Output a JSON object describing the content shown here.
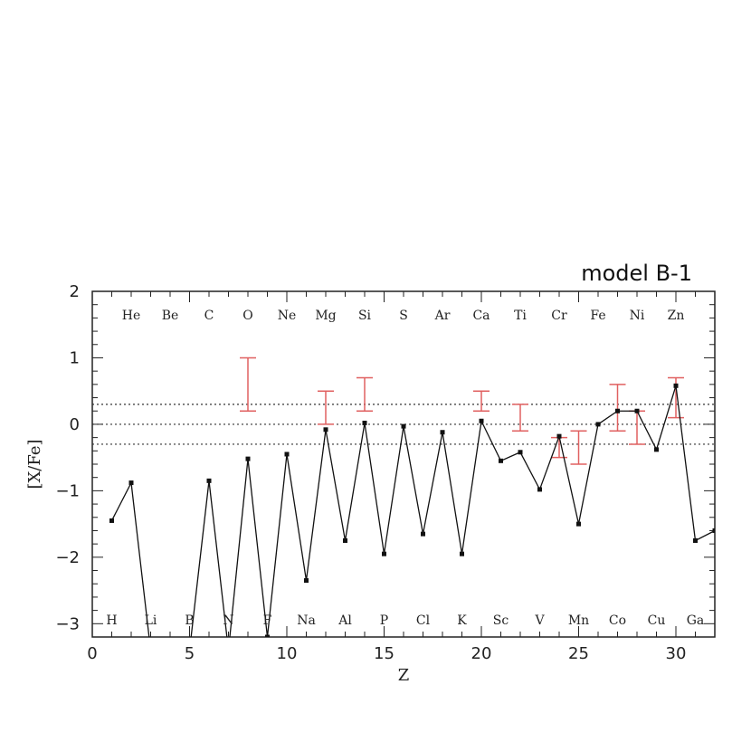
{
  "chart_data": {
    "type": "line",
    "title": "model B-1",
    "xlabel": "Z",
    "ylabel": "[X/Fe]",
    "xlim": [
      0,
      32
    ],
    "ylim": [
      -3.2,
      2
    ],
    "x_ticks": [
      0,
      5,
      10,
      15,
      20,
      25,
      30
    ],
    "y_ticks": [
      2,
      1,
      0,
      -1,
      -2,
      -3
    ],
    "x_tick_labels": [
      "0",
      "5",
      "10",
      "15",
      "20",
      "25",
      "30"
    ],
    "y_tick_labels": [
      "2",
      "1",
      "0",
      "−1",
      "−2",
      "−3"
    ],
    "reference_lines": [
      0.3,
      0.0,
      -0.3
    ],
    "model_series": [
      {
        "z": 1,
        "v": -1.45
      },
      {
        "z": 2,
        "v": -0.88
      },
      {
        "z": 3,
        "v": -3.4
      },
      {
        "z": 4,
        "v": -3.4
      },
      {
        "z": 5,
        "v": -3.4
      },
      {
        "z": 6,
        "v": -0.85
      },
      {
        "z": 7,
        "v": -3.4
      },
      {
        "z": 8,
        "v": -0.52
      },
      {
        "z": 9,
        "v": -3.2
      },
      {
        "z": 10,
        "v": -0.45
      },
      {
        "z": 11,
        "v": -2.35
      },
      {
        "z": 12,
        "v": -0.08
      },
      {
        "z": 13,
        "v": -1.75
      },
      {
        "z": 14,
        "v": 0.02
      },
      {
        "z": 15,
        "v": -1.95
      },
      {
        "z": 16,
        "v": -0.03
      },
      {
        "z": 17,
        "v": -1.65
      },
      {
        "z": 18,
        "v": -0.12
      },
      {
        "z": 19,
        "v": -1.95
      },
      {
        "z": 20,
        "v": 0.05
      },
      {
        "z": 21,
        "v": -0.55
      },
      {
        "z": 22,
        "v": -0.42
      },
      {
        "z": 23,
        "v": -0.98
      },
      {
        "z": 24,
        "v": -0.18
      },
      {
        "z": 25,
        "v": -1.5
      },
      {
        "z": 26,
        "v": 0.0
      },
      {
        "z": 27,
        "v": 0.2
      },
      {
        "z": 28,
        "v": 0.2
      },
      {
        "z": 29,
        "v": -0.38
      },
      {
        "z": 30,
        "v": 0.58
      },
      {
        "z": 31,
        "v": -1.75
      },
      {
        "z": 32,
        "v": -1.6
      }
    ],
    "observed_ranges": [
      {
        "z": 8,
        "low": 0.2,
        "high": 1.0
      },
      {
        "z": 12,
        "low": 0.0,
        "high": 0.5
      },
      {
        "z": 14,
        "low": 0.2,
        "high": 0.7
      },
      {
        "z": 20,
        "low": 0.2,
        "high": 0.5
      },
      {
        "z": 22,
        "low": -0.1,
        "high": 0.3
      },
      {
        "z": 24,
        "low": -0.5,
        "high": -0.2
      },
      {
        "z": 25,
        "low": -0.6,
        "high": -0.1
      },
      {
        "z": 27,
        "low": -0.1,
        "high": 0.6
      },
      {
        "z": 28,
        "low": -0.3,
        "high": 0.2
      },
      {
        "z": 30,
        "low": 0.1,
        "high": 0.7
      }
    ],
    "element_labels_top": [
      {
        "text": "He",
        "z": 2
      },
      {
        "text": "Be",
        "z": 4
      },
      {
        "text": "C",
        "z": 6
      },
      {
        "text": "O",
        "z": 8
      },
      {
        "text": "Ne",
        "z": 10
      },
      {
        "text": "Mg",
        "z": 12
      },
      {
        "text": "Si",
        "z": 14
      },
      {
        "text": "S",
        "z": 16
      },
      {
        "text": "Ar",
        "z": 18
      },
      {
        "text": "Ca",
        "z": 20
      },
      {
        "text": "Ti",
        "z": 22
      },
      {
        "text": "Cr",
        "z": 24
      },
      {
        "text": "Fe",
        "z": 26
      },
      {
        "text": "Ni",
        "z": 28
      },
      {
        "text": "Zn",
        "z": 30
      }
    ],
    "element_labels_bottom": [
      {
        "text": "H",
        "z": 1
      },
      {
        "text": "Li",
        "z": 3
      },
      {
        "text": "B",
        "z": 5
      },
      {
        "text": "N",
        "z": 7
      },
      {
        "text": "F",
        "z": 9
      },
      {
        "text": "Na",
        "z": 11
      },
      {
        "text": "Al",
        "z": 13
      },
      {
        "text": "P",
        "z": 15
      },
      {
        "text": "Cl",
        "z": 17
      },
      {
        "text": "K",
        "z": 19
      },
      {
        "text": "Sc",
        "z": 21
      },
      {
        "text": "V",
        "z": 23
      },
      {
        "text": "Mn",
        "z": 25
      },
      {
        "text": "Co",
        "z": 27
      },
      {
        "text": "Cu",
        "z": 29
      },
      {
        "text": "Ga",
        "z": 31
      }
    ],
    "colors": {
      "line": "#111111",
      "observed": "#e06060",
      "reference": "#333333"
    },
    "grid": false
  }
}
